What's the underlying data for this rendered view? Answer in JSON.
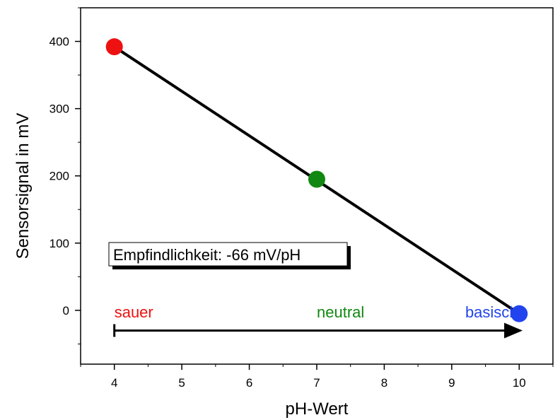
{
  "chart_data": {
    "type": "scatter",
    "xlabel": "pH-Wert",
    "ylabel": "Sensorsignal in mV",
    "xlim": [
      3.5,
      10.5
    ],
    "ylim": [
      -80,
      450
    ],
    "x_ticks": [
      4,
      5,
      6,
      7,
      8,
      9,
      10
    ],
    "y_ticks": [
      0,
      100,
      200,
      300,
      400
    ],
    "grid": false,
    "points": [
      {
        "x": 4,
        "y": 392,
        "color": "#ee1111"
      },
      {
        "x": 7,
        "y": 195,
        "color": "#118811"
      },
      {
        "x": 10,
        "y": -5,
        "color": "#2244ee"
      }
    ],
    "fit_line": {
      "x": [
        4,
        10
      ],
      "y": [
        392,
        -5
      ],
      "color": "#000000"
    },
    "annotation_box": {
      "text": "Empfindlichkeit: -66 mV/pH"
    },
    "scale_labels": [
      {
        "text": "sauer",
        "x": 4,
        "color": "#ee1111"
      },
      {
        "text": "neutral",
        "x": 7,
        "color": "#118811"
      },
      {
        "text": "basisch",
        "x": 9.2,
        "color": "#2244ee"
      }
    ],
    "scale_arrow": {
      "x_start": 4,
      "x_end": 10.05,
      "y": -30
    }
  }
}
